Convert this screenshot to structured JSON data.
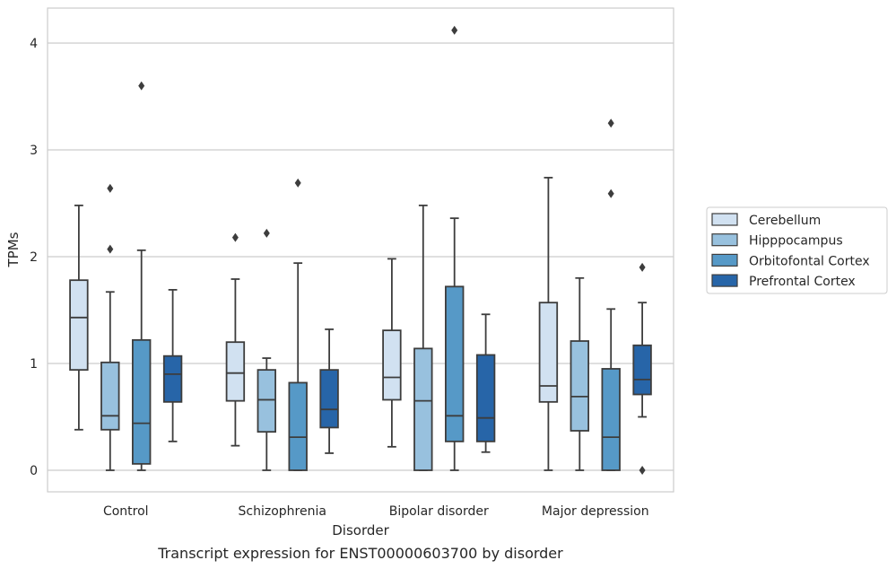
{
  "caption": "Transcript expression for ENST00000603700 by disorder",
  "chart_data": {
    "type": "boxplot",
    "xlabel": "Disorder",
    "ylabel": "TPMs",
    "ylim": [
      -0.2,
      4.33
    ],
    "yticks": [
      "0",
      "1",
      "2",
      "3",
      "4"
    ],
    "grid": "horizontal",
    "legend_position": "right",
    "categories": [
      "Control",
      "Schizophrenia",
      "Bipolar disorder",
      "Major depression"
    ],
    "series": [
      {
        "name": "Cerebellum",
        "color": "#d1e1f1",
        "boxes": [
          {
            "whisker_low": 0.38,
            "q1": 0.94,
            "median": 1.43,
            "q3": 1.78,
            "whisker_high": 2.48,
            "outliers": []
          },
          {
            "whisker_low": 0.23,
            "q1": 0.65,
            "median": 0.91,
            "q3": 1.2,
            "whisker_high": 1.79,
            "outliers": [
              2.18
            ]
          },
          {
            "whisker_low": 0.22,
            "q1": 0.66,
            "median": 0.87,
            "q3": 1.31,
            "whisker_high": 1.98,
            "outliers": []
          },
          {
            "whisker_low": 0.0,
            "q1": 0.64,
            "median": 0.79,
            "q3": 1.57,
            "whisker_high": 2.74,
            "outliers": []
          }
        ]
      },
      {
        "name": "Hipppocampus",
        "color": "#98c1de",
        "boxes": [
          {
            "whisker_low": 0.0,
            "q1": 0.38,
            "median": 0.51,
            "q3": 1.01,
            "whisker_high": 1.67,
            "outliers": [
              2.07,
              2.64
            ]
          },
          {
            "whisker_low": 0.0,
            "q1": 0.36,
            "median": 0.66,
            "q3": 0.94,
            "whisker_high": 1.05,
            "outliers": [
              2.22
            ]
          },
          {
            "whisker_low": 0.0,
            "q1": 0.0,
            "median": 0.65,
            "q3": 1.14,
            "whisker_high": 2.48,
            "outliers": []
          },
          {
            "whisker_low": 0.0,
            "q1": 0.37,
            "median": 0.69,
            "q3": 1.21,
            "whisker_high": 1.8,
            "outliers": []
          }
        ]
      },
      {
        "name": "Orbitofontal Cortex",
        "color": "#5699c7",
        "boxes": [
          {
            "whisker_low": 0.0,
            "q1": 0.06,
            "median": 0.44,
            "q3": 1.22,
            "whisker_high": 2.06,
            "outliers": [
              3.6
            ]
          },
          {
            "whisker_low": 0.0,
            "q1": 0.0,
            "median": 0.31,
            "q3": 0.82,
            "whisker_high": 1.94,
            "outliers": [
              2.69
            ]
          },
          {
            "whisker_low": 0.0,
            "q1": 0.27,
            "median": 0.51,
            "q3": 1.72,
            "whisker_high": 2.36,
            "outliers": [
              4.12
            ]
          },
          {
            "whisker_low": 0.0,
            "q1": 0.0,
            "median": 0.31,
            "q3": 0.95,
            "whisker_high": 1.51,
            "outliers": [
              2.59,
              3.25
            ]
          }
        ]
      },
      {
        "name": "Prefrontal Cortex",
        "color": "#2765a8",
        "boxes": [
          {
            "whisker_low": 0.27,
            "q1": 0.64,
            "median": 0.9,
            "q3": 1.07,
            "whisker_high": 1.69,
            "outliers": []
          },
          {
            "whisker_low": 0.16,
            "q1": 0.4,
            "median": 0.57,
            "q3": 0.94,
            "whisker_high": 1.32,
            "outliers": []
          },
          {
            "whisker_low": 0.17,
            "q1": 0.27,
            "median": 0.49,
            "q3": 1.08,
            "whisker_high": 1.46,
            "outliers": []
          },
          {
            "whisker_low": 0.5,
            "q1": 0.71,
            "median": 0.85,
            "q3": 1.17,
            "whisker_high": 1.57,
            "outliers": [
              1.9,
              0.0
            ]
          }
        ]
      }
    ]
  }
}
